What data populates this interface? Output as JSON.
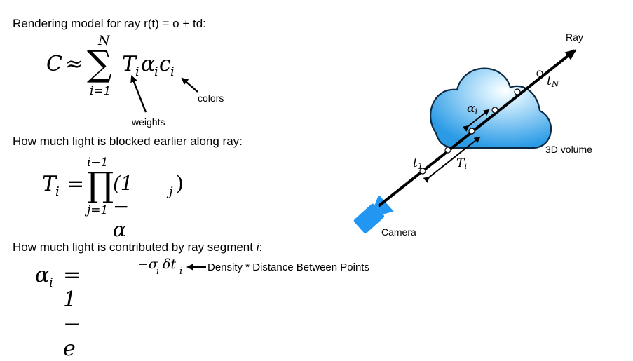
{
  "left": {
    "heading_render": "Rendering model for ray r(t) = o + td:",
    "eq_render": {
      "lhs": "C",
      "approx": "≈",
      "sum_top": "N",
      "sum_bottom": "i=1",
      "term_T": "T",
      "term_T_sub": "i",
      "term_alpha": "α",
      "term_alpha_sub": "i",
      "term_c": "c",
      "term_c_sub": "i"
    },
    "label_weights": "weights",
    "label_colors": "colors",
    "heading_blocked": "How much light is blocked earlier along ray:",
    "eq_T": {
      "lhs": "T",
      "lhs_sub": "i",
      "equals": "=",
      "prod_top": "i−1",
      "prod_bottom": "j=1",
      "factor": "(1 − α",
      "factor_sub": "j",
      "factor_close": ")"
    },
    "heading_contributed_prefix": "How much light is contributed by ray segment ",
    "heading_contributed_var": "i",
    "heading_contributed_suffix": ":",
    "eq_alpha": {
      "lhs": "α",
      "lhs_sub": "i",
      "rhs": "= 1 − e",
      "exp": "−σ",
      "exp_sub": "i",
      "exp_delta": "δt",
      "exp_delta_sub": "i"
    },
    "label_density": "Density * Distance Between Points"
  },
  "right": {
    "label_ray": "Ray",
    "label_volume": "3D volume",
    "label_camera": "Camera",
    "label_tN": "t",
    "label_tN_sub": "N",
    "label_t1": "t",
    "label_t1_sub": "1",
    "label_alpha": "α",
    "label_alpha_sub": "i",
    "label_T": "T",
    "label_T_sub": "i",
    "colors": {
      "cloud_light": "#d8f1ff",
      "cloud_dark": "#2b9be6",
      "camera": "#2196f3",
      "ray": "#000000"
    }
  }
}
